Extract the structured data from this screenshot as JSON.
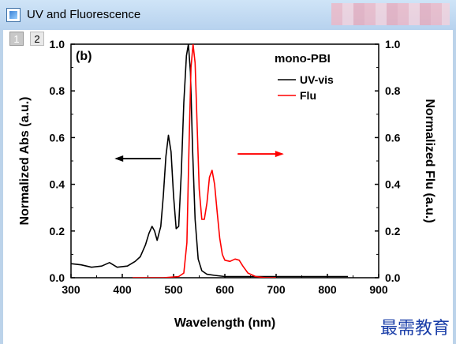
{
  "window": {
    "title": "UV and Fluorescence",
    "app_icon": "origin-graph-icon"
  },
  "layers": [
    "1",
    "2"
  ],
  "watermark": "最需教育",
  "chart_data": {
    "type": "line",
    "panel_label": "(b)",
    "legend_title": "mono-PBI",
    "xlabel": "Wavelength (nm)",
    "ylabel": "Normalized Abs (a.u.)",
    "y2label": "Normalized Flu (a.u.)",
    "xlim": [
      300,
      900
    ],
    "ylim": [
      0.0,
      1.0
    ],
    "x_ticks": [
      "300",
      "400",
      "500",
      "600",
      "700",
      "800",
      "900"
    ],
    "y_ticks": [
      "0.0",
      "0.2",
      "0.4",
      "0.6",
      "0.8",
      "1.0"
    ],
    "series": [
      {
        "name": "UV-vis",
        "color": "#000000",
        "x": [
          300,
          320,
          340,
          360,
          375,
          390,
          410,
          425,
          435,
          445,
          452,
          458,
          463,
          468,
          475,
          480,
          485,
          490,
          495,
          500,
          505,
          510,
          515,
          520,
          525,
          529,
          533,
          537,
          542,
          548,
          555,
          565,
          580,
          600,
          650,
          700,
          750,
          800,
          840
        ],
        "y": [
          0.06,
          0.055,
          0.045,
          0.05,
          0.065,
          0.045,
          0.05,
          0.07,
          0.09,
          0.14,
          0.19,
          0.22,
          0.2,
          0.16,
          0.22,
          0.35,
          0.52,
          0.61,
          0.54,
          0.35,
          0.21,
          0.22,
          0.45,
          0.75,
          0.95,
          1.0,
          0.88,
          0.55,
          0.25,
          0.08,
          0.03,
          0.015,
          0.01,
          0.005,
          0.005,
          0.005,
          0.005,
          0.005,
          0.005
        ]
      },
      {
        "name": "Flu",
        "color": "#ff0000",
        "x": [
          420,
          480,
          510,
          520,
          526,
          530,
          534,
          538,
          542,
          546,
          550,
          555,
          560,
          565,
          570,
          575,
          580,
          585,
          590,
          595,
          600,
          610,
          620,
          628,
          635,
          645,
          660,
          680,
          700
        ],
        "y": [
          0.0,
          0.0,
          0.005,
          0.02,
          0.15,
          0.55,
          0.9,
          1.0,
          0.92,
          0.65,
          0.38,
          0.25,
          0.25,
          0.32,
          0.43,
          0.46,
          0.4,
          0.28,
          0.17,
          0.1,
          0.075,
          0.07,
          0.08,
          0.075,
          0.05,
          0.02,
          0.005,
          0.0,
          0.0
        ]
      }
    ],
    "annotations": [
      {
        "type": "arrow",
        "direction": "left",
        "color": "#000000",
        "from_x": 475,
        "to_x": 388,
        "y": 0.51
      },
      {
        "type": "arrow",
        "direction": "right",
        "color": "#ff0000",
        "from_x": 625,
        "to_x": 712,
        "y": 0.53
      }
    ]
  }
}
